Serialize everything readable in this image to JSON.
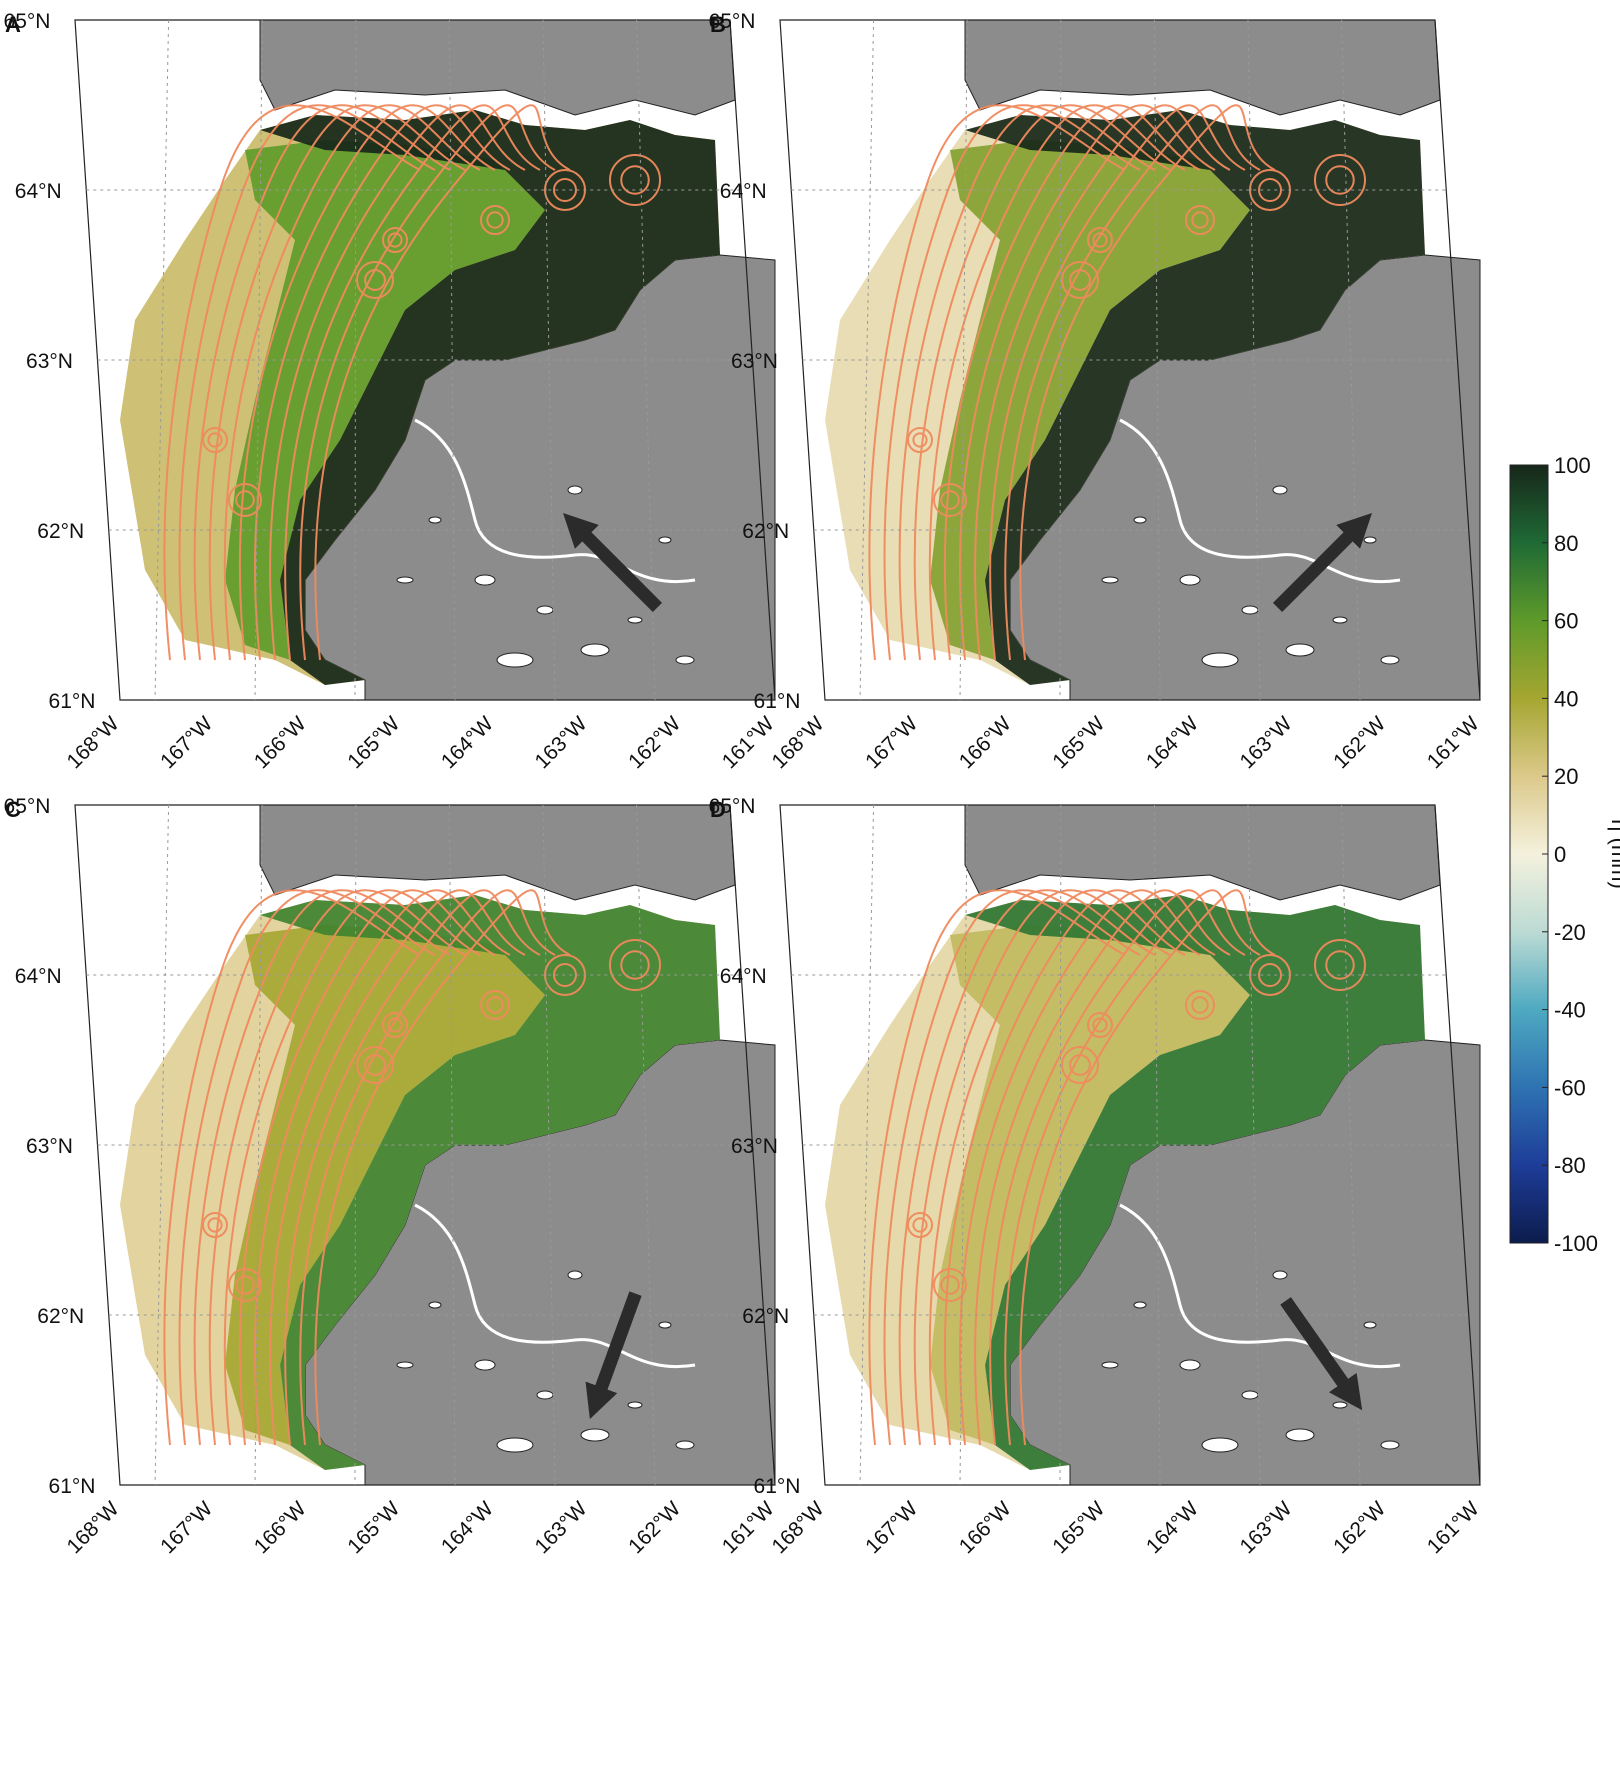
{
  "figure": {
    "panels": [
      {
        "label": "A",
        "wind": "northwest",
        "wind_angle_deg": -45,
        "level_shelf": 25,
        "level_mid": 60,
        "level_coast": 100
      },
      {
        "label": "B",
        "wind": "northeast",
        "wind_angle_deg": 45,
        "level_shelf": 10,
        "level_mid": 50,
        "level_coast": 100
      },
      {
        "label": "C",
        "wind": "southwest",
        "wind_angle_deg": -160,
        "level_shelf": 15,
        "level_mid": 40,
        "level_coast": 70
      },
      {
        "label": "D",
        "wind": "southeast",
        "wind_angle_deg": 145,
        "level_shelf": 12,
        "level_mid": 30,
        "level_coast": 75
      }
    ],
    "lat_labels": [
      "65°N",
      "64°N",
      "63°N",
      "62°N",
      "61°N"
    ],
    "lon_labels": [
      "168°W",
      "167°W",
      "166°W",
      "165°W",
      "164°W",
      "163°W",
      "162°W",
      "161°W"
    ],
    "colorbar": {
      "title": "η (mm)",
      "min": -100,
      "max": 100,
      "ticks": [
        "100",
        "80",
        "60",
        "40",
        "20",
        "0",
        "-20",
        "-40",
        "-60",
        "-80",
        "-100"
      ]
    },
    "colors": {
      "land": "#8c8c8c",
      "streamlines": "#f08a5d",
      "arrow": "#2b2b2b",
      "cb_100": "#17271a",
      "cb_80": "#1f6a35",
      "cb_60": "#5e9a2a",
      "cb_40": "#a5a631",
      "cb_20": "#dcc98a",
      "cb_0": "#f4f1dd",
      "cb_m20": "#bcdbd4",
      "cb_m40": "#4ea9c1",
      "cb_m60": "#2e73b2",
      "cb_m80": "#1e3d98",
      "cb_m100": "#0c1c4d"
    }
  }
}
